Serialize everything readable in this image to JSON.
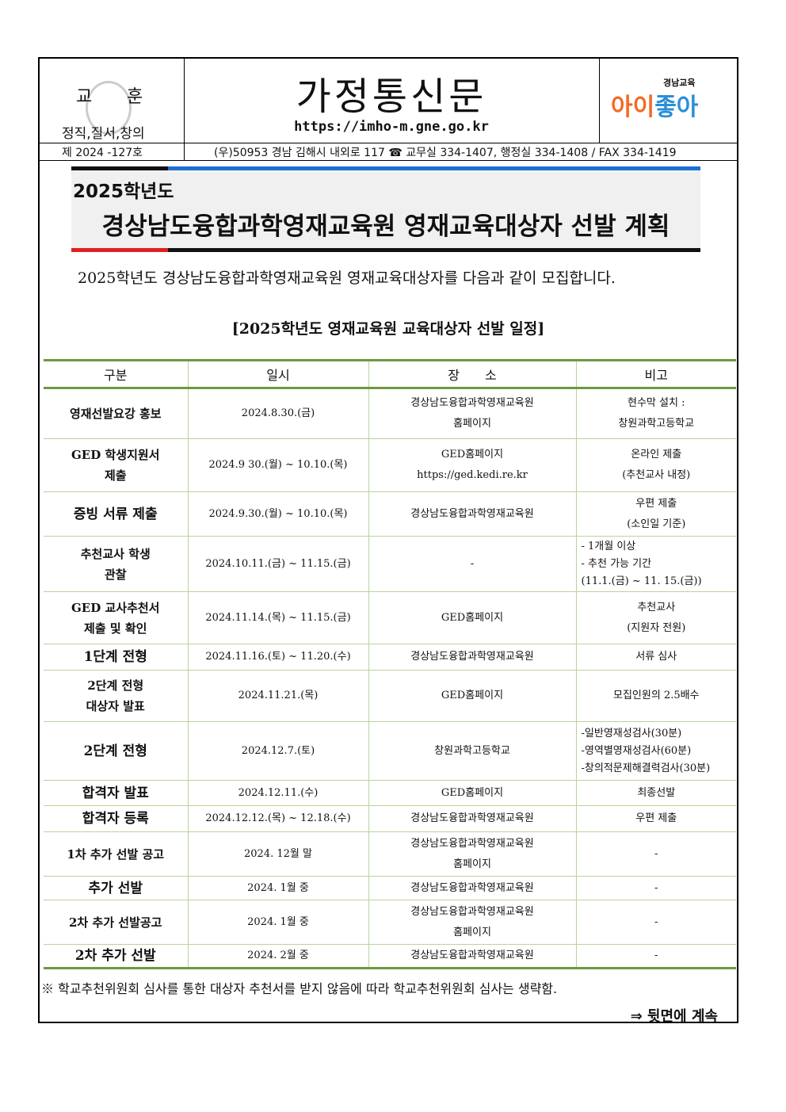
{
  "header": {
    "motto_label_a": "교",
    "motto_label_b": "훈",
    "motto_values": "정직,질서,창의",
    "title": "가정통신문",
    "url": "https://imho-m.gne.go.kr",
    "logo_small": "경남교육",
    "logo_text_orange": "아이",
    "logo_text_blue": "좋아",
    "issue": "제 2024 -127호",
    "address": "(우)50953 경남 김해시 내외로 117  ☎ 교무실 334-1407, 행정실 334-1408 / FAX 334-1419"
  },
  "banner": {
    "year": "2025학년도",
    "title": "경상남도융합과학영재교육원 영재교육대상자 선발 계획"
  },
  "intro": "2025학년도 경상남도융합과학영재교육원 영재교육대상자를 다음과 같이 모집합니다.",
  "schedule_title": "[2025학년도 영재교육원 교육대상자 선발 일정]",
  "table": {
    "headers": [
      "구분",
      "일시",
      "장　　소",
      "비고"
    ],
    "rows": [
      {
        "item": "영재선발요강 홍보",
        "date": "2024.8.30.(금)",
        "place": "경상남도융합과학영재교육원\n홈페이지",
        "note": "현수막 설치 :\n창원과학고등학교"
      },
      {
        "item": "GED 학생지원서\n제출",
        "date": "2024.9 30.(월) ~ 10.10.(목)",
        "place": "GED홈페이지\nhttps://ged.kedi.re.kr",
        "note": "온라인 제출\n(추천교사 내정)"
      },
      {
        "item": "증빙 서류 제출",
        "date": "2024.9.30.(월) ~ 10.10.(목)",
        "place": "경상남도융합과학영재교육원",
        "note": "우편 제출\n(소인일 기준)"
      },
      {
        "item": "추천교사 학생\n관찰",
        "date": "2024.10.11.(금) ~ 11.15.(금)",
        "place": "-",
        "note": "- 1개월 이상\n- 추천 가능 기간\n(11.1.(금) ~ 11. 15.(금))"
      },
      {
        "item": "GED 교사추천서\n제출 및 확인",
        "date": "2024.11.14.(목) ~ 11.15.(금)",
        "place": "GED홈페이지",
        "note": "추천교사\n(지원자 전원)"
      },
      {
        "item": "1단계 전형",
        "date": "2024.11.16.(토) ~ 11.20.(수)",
        "place": "경상남도융합과학영재교육원",
        "note": "서류 심사"
      },
      {
        "item": "2단계 전형\n대상자 발표",
        "date": "2024.11.21.(목)",
        "place": "GED홈페이지",
        "note": "모집인원의 2.5배수"
      },
      {
        "item": "2단계 전형",
        "date": "2024.12.7.(토)",
        "place": "창원과학고등학교",
        "note": "-일반영재성검사(30분)\n-영역별영재성검사(60분)\n-창의적문제해결력검사(30분)"
      },
      {
        "item": "합격자 발표",
        "date": "2024.12.11.(수)",
        "place": "GED홈페이지",
        "note": "최종선발"
      },
      {
        "item": "합격자 등록",
        "date": "2024.12.12.(목) ~ 12.18.(수)",
        "place": "경상남도융합과학영재교육원",
        "note": "우편 제출"
      },
      {
        "item": "1차 추가 선발 공고",
        "date": "2024. 12월 말",
        "place": "경상남도융합과학영재교육원\n홈페이지",
        "note": "-"
      },
      {
        "item": "추가 선발",
        "date": "2024. 1월 중",
        "place": "경상남도융합과학영재교육원",
        "note": "-"
      },
      {
        "item": "2차 추가 선발공고",
        "date": "2024. 1월 중",
        "place": "경상남도융합과학영재교육원\n홈페이지",
        "note": "-"
      },
      {
        "item": "2차 추가 선발",
        "date": "2024. 2월 중",
        "place": "경상남도융합과학영재교육원",
        "note": "-"
      }
    ]
  },
  "footnote": "※ 학교추천위원회 심사를 통한 대상자 추천서를 받지 않음에 따라 학교추천위원회 심사는 생략함.",
  "continued": "⇒ 뒷면에 계속"
}
